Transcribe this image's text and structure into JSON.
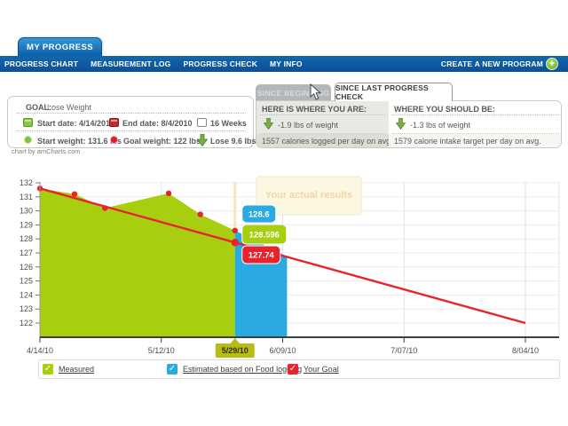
{
  "header": {
    "tab": "MY PROGRESS",
    "nav": [
      {
        "label": "PROGRESS CHART"
      },
      {
        "label": "MEASUREMENT LOG"
      },
      {
        "label": "PROGRESS CHECK"
      },
      {
        "label": "MY INFO"
      }
    ],
    "nav_right": "CREATE A NEW PROGRAM",
    "plus": "+"
  },
  "goal_panel": {
    "title_label": "GOAL:",
    "title_value": "Lose Weight",
    "start_date": "Start date: 4/14/2010",
    "end_date": "End date: 8/4/2010",
    "duration": "16 Weeks",
    "start_weight": "Start weight: 131.6 lbs",
    "goal_weight": "Goal weight: 122 lbs",
    "lose": "Lose 9.6 lbs"
  },
  "progress_panel": {
    "tab_inactive": "SINCE BEGINNING",
    "tab_active": "SINCE LAST PROGRESS CHECK",
    "left": {
      "header": "HERE IS WHERE YOU ARE:",
      "weight": "-1.9 lbs of weight",
      "calories": "1557 calories logged per day on avg."
    },
    "right": {
      "header": "WHERE YOU SHOULD BE:",
      "weight": "-1.3 lbs of weight",
      "calories": "1579 calorie intake target per day on avg."
    }
  },
  "chart_credits": "chart by amCharts.com",
  "chart_data": {
    "type": "area",
    "title": "",
    "xlabel": "",
    "ylabel": "",
    "ylim": [
      121,
      132.5
    ],
    "yticks": [
      122,
      123,
      124,
      125,
      126,
      127,
      128,
      129,
      130,
      131,
      132
    ],
    "xticks": [
      {
        "label": "4/14/10",
        "day": 0
      },
      {
        "label": "5/12/10",
        "day": 28
      },
      {
        "label": "5/29/10",
        "day": 45,
        "highlight": true
      },
      {
        "label": "6/09/10",
        "day": 56
      },
      {
        "label": "7/07/10",
        "day": 84
      },
      {
        "label": "8/04/10",
        "day": 112
      }
    ],
    "series": [
      {
        "name": "Measured",
        "color": "#a8ce10",
        "points": [
          [
            0,
            131.6
          ],
          [
            8,
            131.2
          ],
          [
            15,
            130.2
          ],
          [
            29.7,
            131.25
          ],
          [
            37,
            129.75
          ],
          [
            45,
            128.596
          ]
        ]
      },
      {
        "name": "Estimated based on Food logging",
        "color": "#29aae1",
        "points": [
          [
            45,
            128.6
          ],
          [
            57,
            126.75
          ]
        ]
      },
      {
        "name": "Your Goal",
        "color": "#e9232d",
        "points": [
          [
            0,
            131.6
          ],
          [
            112,
            122
          ]
        ]
      }
    ],
    "hover": {
      "day": 45,
      "date_label": "5/29/10",
      "goal_value": 127.74,
      "labels": [
        {
          "value": "128.6",
          "color": "#29aae1"
        },
        {
          "value": "128.596",
          "color": "#a8ce10"
        },
        {
          "value": "127.74",
          "color": "#e9232d"
        }
      ]
    },
    "tooltip": "Your actual results",
    "legend_position": "bottom",
    "grid": true
  },
  "legend": [
    {
      "label": "Measured",
      "color": "#a8ce10"
    },
    {
      "label": "Estimated based on Food logging",
      "color": "#29aae1"
    },
    {
      "label": "Your Goal",
      "color": "#e9232d"
    }
  ]
}
